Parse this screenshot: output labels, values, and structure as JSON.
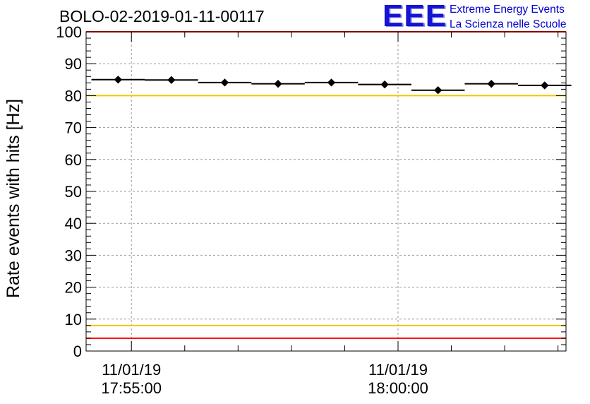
{
  "title": "BOLO-02-2019-01-11-00117",
  "logo": {
    "mark": "EEE",
    "line1": "Extreme Energy Events",
    "line2": "La Scienza nelle Scuole"
  },
  "chart_data": {
    "type": "scatter",
    "title": "BOLO-02-2019-01-11-00117",
    "ylabel": "Rate events with hits [Hz]",
    "xlabel": "",
    "ylim": [
      0,
      100
    ],
    "xlim_min": [
      -0.85,
      8.15
    ],
    "yticks": [
      0,
      10,
      20,
      30,
      40,
      50,
      60,
      70,
      80,
      90,
      100
    ],
    "xtick_labels": [
      {
        "date": "11/01/19",
        "time": "17:55:00",
        "min": 0
      },
      {
        "date": "11/01/19",
        "time": "18:00:00",
        "min": 5
      }
    ],
    "grid": true,
    "series": [
      {
        "x_min": [
          -0.25,
          0.75,
          1.75,
          2.75,
          3.75,
          4.75,
          5.75,
          6.75,
          7.75
        ],
        "x_halfwidth_min": 0.5,
        "y": [
          85.0,
          84.9,
          84.1,
          83.7,
          84.1,
          83.5,
          81.7,
          83.7,
          83.2
        ],
        "yerr": [
          0.9,
          0.9,
          0.9,
          0.9,
          0.9,
          0.9,
          0.9,
          0.9,
          0.9
        ]
      }
    ],
    "reference_lines": [
      {
        "y": 4,
        "color": "#ff0000"
      },
      {
        "y": 8,
        "color": "#f5c400"
      },
      {
        "y": 80,
        "color": "#f5c400"
      },
      {
        "y": 100,
        "color": "#ff0000"
      }
    ]
  }
}
